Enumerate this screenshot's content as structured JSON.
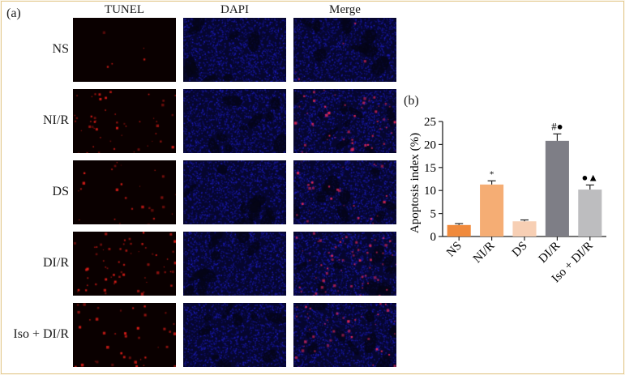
{
  "panel_a_label": "(a)",
  "panel_b_label": "(b)",
  "columns": [
    "TUNEL",
    "DAPI",
    "Merge"
  ],
  "rows": [
    "NS",
    "NI/R",
    "DS",
    "DI/R",
    "Iso + DI/R"
  ],
  "colors": {
    "tunel_bg": "#0a0000",
    "tunel_signal": "#e0201a",
    "dapi_bg": "#06062e",
    "dapi_signal": "#2a2ad0",
    "frame_border": "#e3c98f",
    "page_bg": "#fbf6ec"
  },
  "tunel_density": [
    0.05,
    0.55,
    0.3,
    0.7,
    0.45
  ],
  "chart_data": {
    "type": "bar",
    "categories": [
      "NS",
      "NI/R",
      "DS",
      "DI/R",
      "Iso + DI/R"
    ],
    "values": [
      2.5,
      11.3,
      3.3,
      20.8,
      10.2
    ],
    "errors": [
      0.3,
      0.8,
      0.3,
      1.5,
      1.0
    ],
    "bar_colors": [
      "#f08a3c",
      "#f5ad74",
      "#f7cfb4",
      "#7e7e86",
      "#bdbdbf"
    ],
    "annotations": [
      "",
      "*",
      "",
      "#●",
      "●▲"
    ],
    "title": "",
    "xlabel": "",
    "ylabel": "Apoptosis index (%)",
    "ylim": [
      0,
      25
    ],
    "yticks": [
      "0",
      "5",
      "10",
      "15",
      "20",
      "25"
    ],
    "grid": false
  }
}
